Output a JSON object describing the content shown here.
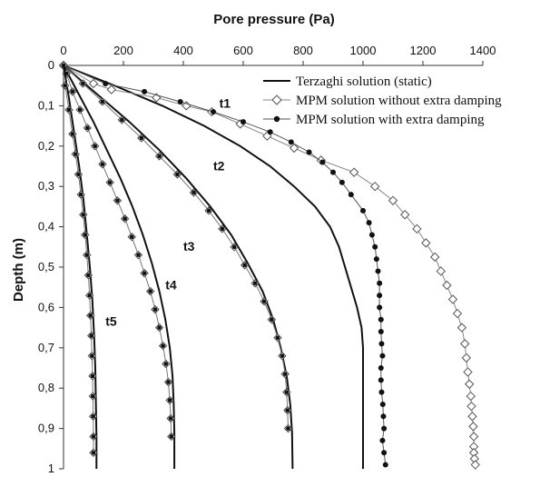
{
  "chart_data": {
    "type": "line",
    "xlabel": "Pore pressure (Pa)",
    "ylabel": "Depth (m)",
    "xlim": [
      0,
      1400
    ],
    "ylim": [
      0,
      1
    ],
    "x_axis_position": "top",
    "y_axis_inverted": true,
    "grid": false,
    "legend_position": "top-right",
    "x_ticks": [
      0,
      200,
      400,
      600,
      800,
      1000,
      1200,
      1400
    ],
    "y_ticks": [
      0,
      0.1,
      0.2,
      0.3,
      0.4,
      0.5,
      0.6,
      0.7,
      0.8,
      0.9,
      1
    ],
    "x_tick_labels": [
      "0",
      "200",
      "400",
      "600",
      "800",
      "1000",
      "1200",
      "1400"
    ],
    "y_tick_labels": [
      "0",
      "0,1",
      "0,2",
      "0,3",
      "0,4",
      "0,5",
      "0,6",
      "0,7",
      "0,8",
      "0,9",
      "1"
    ],
    "legend": [
      {
        "name": "Terzaghi solution (static)",
        "style": "line"
      },
      {
        "name": "MPM solution without extra damping",
        "style": "open-diamond"
      },
      {
        "name": "MPM solution with extra damping",
        "style": "filled-circle"
      }
    ],
    "curve_labels": [
      {
        "text": "t1",
        "x": 520,
        "y": 0.105
      },
      {
        "text": "t2",
        "x": 500,
        "y": 0.26
      },
      {
        "text": "t3",
        "x": 400,
        "y": 0.46
      },
      {
        "text": "t4",
        "x": 340,
        "y": 0.555
      },
      {
        "text": "t5",
        "x": 140,
        "y": 0.645
      }
    ],
    "series": [
      {
        "name": "Terzaghi solution (static)",
        "marker": "none",
        "color": "#111111",
        "x": [
          0,
          170,
          330,
          470,
          590,
          690,
          770,
          840,
          890,
          920,
          940,
          960,
          980,
          995,
          1000,
          1000,
          1000,
          1000,
          1000,
          1000,
          1000
        ],
        "y": [
          0,
          0.05,
          0.1,
          0.15,
          0.2,
          0.25,
          0.3,
          0.35,
          0.4,
          0.45,
          0.5,
          0.55,
          0.6,
          0.65,
          0.7,
          0.75,
          0.8,
          0.85,
          0.9,
          0.95,
          1.0
        ]
      },
      {
        "name": "MPM solution without extra damping",
        "marker": "open-diamond",
        "color": "#777777",
        "x": [
          0,
          100,
          160,
          310,
          410,
          495,
          590,
          680,
          770,
          860,
          970,
          1040,
          1100,
          1140,
          1180,
          1210,
          1240,
          1260,
          1280,
          1300,
          1315,
          1330,
          1340,
          1345,
          1350,
          1355,
          1360,
          1362,
          1365,
          1368,
          1370,
          1370,
          1370,
          1372,
          1375
        ],
        "y": [
          0,
          0.045,
          0.06,
          0.08,
          0.1,
          0.115,
          0.145,
          0.175,
          0.205,
          0.235,
          0.265,
          0.3,
          0.335,
          0.37,
          0.405,
          0.44,
          0.475,
          0.51,
          0.545,
          0.58,
          0.615,
          0.65,
          0.69,
          0.725,
          0.76,
          0.79,
          0.82,
          0.845,
          0.87,
          0.895,
          0.92,
          0.945,
          0.96,
          0.975,
          0.99
        ]
      },
      {
        "name": "MPM solution with extra damping",
        "marker": "filled-circle",
        "color": "#111111",
        "x": [
          0,
          140,
          270,
          390,
          500,
          600,
          690,
          760,
          820,
          865,
          900,
          930,
          960,
          1000,
          1020,
          1030,
          1040,
          1045,
          1050,
          1055,
          1055,
          1055,
          1060,
          1060,
          1062,
          1065,
          1060,
          1060,
          1062,
          1066,
          1068,
          1070,
          1065,
          1070,
          1075
        ],
        "y": [
          0,
          0.045,
          0.065,
          0.09,
          0.115,
          0.14,
          0.165,
          0.19,
          0.215,
          0.24,
          0.265,
          0.29,
          0.32,
          0.36,
          0.39,
          0.42,
          0.45,
          0.48,
          0.51,
          0.54,
          0.57,
          0.6,
          0.63,
          0.66,
          0.69,
          0.72,
          0.75,
          0.78,
          0.81,
          0.84,
          0.87,
          0.9,
          0.93,
          0.96,
          0.99
        ]
      },
      {
        "name": "",
        "marker": "none",
        "color": "#111111",
        "x": [
          0,
          110,
          220,
          320,
          410,
          490,
          560,
          615,
          665,
          700,
          725,
          745,
          757,
          763,
          765
        ],
        "y": [
          0,
          0.07,
          0.14,
          0.21,
          0.28,
          0.35,
          0.42,
          0.49,
          0.56,
          0.63,
          0.7,
          0.77,
          0.84,
          0.91,
          1.0
        ]
      },
      {
        "name": "",
        "marker": "diamond-dot",
        "x": [
          0,
          65,
          130,
          195,
          260,
          320,
          380,
          435,
          485,
          530,
          570,
          605,
          640,
          670,
          695,
          715,
          730,
          740,
          745,
          748,
          750
        ],
        "y": [
          0,
          0.045,
          0.09,
          0.135,
          0.18,
          0.225,
          0.27,
          0.315,
          0.36,
          0.405,
          0.45,
          0.495,
          0.54,
          0.585,
          0.63,
          0.675,
          0.72,
          0.765,
          0.81,
          0.855,
          0.9
        ]
      },
      {
        "name": "",
        "marker": "none",
        "color": "#111111",
        "x": [
          0,
          50,
          100,
          145,
          190,
          230,
          265,
          295,
          320,
          340,
          355,
          364,
          368,
          370,
          370
        ],
        "y": [
          0,
          0.07,
          0.14,
          0.21,
          0.28,
          0.35,
          0.42,
          0.49,
          0.56,
          0.63,
          0.7,
          0.77,
          0.84,
          0.91,
          1.0
        ]
      },
      {
        "name": "",
        "marker": "diamond-dot",
        "x": [
          10,
          30,
          55,
          80,
          105,
          130,
          155,
          180,
          205,
          228,
          250,
          270,
          290,
          306,
          320,
          332,
          342,
          350,
          355,
          358,
          360
        ],
        "y": [
          0.02,
          0.065,
          0.11,
          0.155,
          0.2,
          0.245,
          0.29,
          0.335,
          0.38,
          0.425,
          0.47,
          0.515,
          0.56,
          0.605,
          0.65,
          0.695,
          0.74,
          0.785,
          0.83,
          0.875,
          0.92
        ]
      },
      {
        "name": "",
        "marker": "none",
        "color": "#111111",
        "x": [
          0,
          18,
          36,
          52,
          66,
          78,
          88,
          96,
          102,
          106,
          108,
          110,
          110
        ],
        "y": [
          0,
          0.08,
          0.17,
          0.25,
          0.33,
          0.42,
          0.5,
          0.58,
          0.67,
          0.75,
          0.83,
          0.92,
          1.0
        ]
      },
      {
        "name": "",
        "marker": "diamond-dot",
        "x": [
          5,
          18,
          30,
          40,
          50,
          58,
          66,
          72,
          78,
          83,
          87,
          90,
          93,
          95,
          97,
          98,
          99,
          100,
          100
        ],
        "y": [
          0.05,
          0.11,
          0.17,
          0.22,
          0.27,
          0.32,
          0.37,
          0.42,
          0.47,
          0.52,
          0.57,
          0.62,
          0.67,
          0.72,
          0.77,
          0.82,
          0.87,
          0.92,
          0.96
        ]
      }
    ]
  }
}
